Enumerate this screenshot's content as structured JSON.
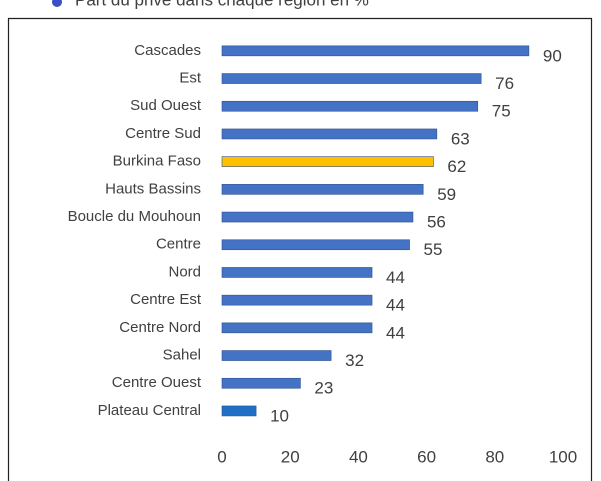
{
  "chart_data": {
    "type": "bar",
    "orientation": "horizontal",
    "title": "Part du privé dans chaque région en %",
    "categories": [
      "Cascades",
      "Est",
      "Sud Ouest",
      "Centre Sud",
      "Burkina Faso",
      "Hauts Bassins",
      "Boucle du Mouhoun",
      "Centre",
      "Nord",
      "Centre Est",
      "Centre Nord",
      "Sahel",
      "Centre Ouest",
      "Plateau Central"
    ],
    "values": [
      90,
      76,
      75,
      63,
      62,
      59,
      56,
      55,
      44,
      44,
      44,
      32,
      23,
      10
    ],
    "colors": [
      "#4472c4",
      "#4472c4",
      "#4472c4",
      "#4472c4",
      "#ffc000",
      "#4472c4",
      "#4472c4",
      "#4472c4",
      "#4472c4",
      "#4472c4",
      "#4472c4",
      "#4472c4",
      "#4472c4",
      "#1f6fc6"
    ],
    "xlim": [
      0,
      100
    ],
    "xticks": [
      0,
      20,
      40,
      60,
      80,
      100
    ],
    "grid": false
  }
}
